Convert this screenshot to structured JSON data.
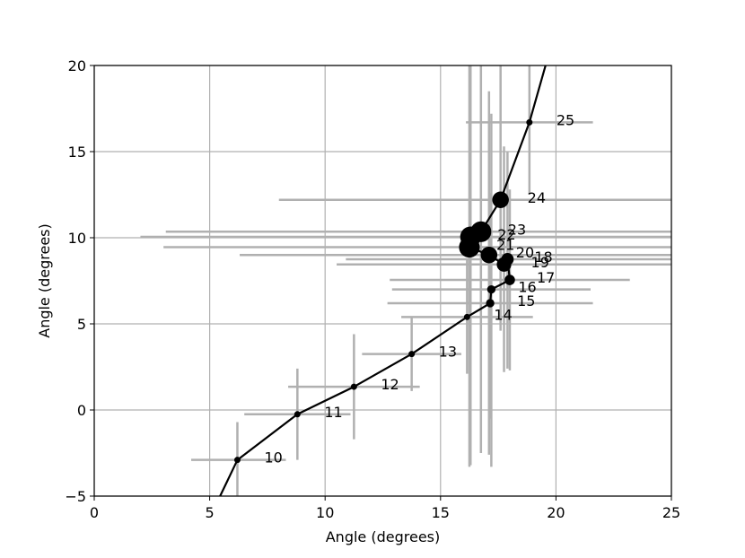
{
  "chart_data": {
    "type": "scatter",
    "title": "",
    "xlabel": "Angle (degrees)",
    "ylabel": "Angle (degrees)",
    "xlim": [
      0,
      25
    ],
    "ylim": [
      -5,
      20
    ],
    "xticks": [
      0,
      5,
      10,
      15,
      20,
      25
    ],
    "yticks": [
      -5,
      0,
      5,
      10,
      15,
      20
    ],
    "xtick_labels": [
      "0",
      "5",
      "10",
      "15",
      "20",
      "25"
    ],
    "ytick_labels": [
      "−5",
      "0",
      "5",
      "10",
      "15",
      "20"
    ],
    "grid": true,
    "line_color": "#000000",
    "errorbar_color": "#b0b0b0",
    "grid_color": "#b0b0b0",
    "line_extensions": {
      "start": {
        "x": 5.45,
        "y": -5.0
      },
      "end": {
        "x": 19.55,
        "y": 20.0
      }
    },
    "points": [
      {
        "label": "10",
        "x": 6.2,
        "y": -2.9,
        "xerr_low": 4.2,
        "xerr_high": 8.3,
        "yerr_low": -5.0,
        "yerr_high": -0.7,
        "marker_size": 2
      },
      {
        "label": "11",
        "x": 8.8,
        "y": -0.25,
        "xerr_low": 6.5,
        "xerr_high": 11.1,
        "yerr_low": -2.9,
        "yerr_high": 2.4,
        "marker_size": 2
      },
      {
        "label": "12",
        "x": 11.25,
        "y": 1.35,
        "xerr_low": 8.4,
        "xerr_high": 14.1,
        "yerr_low": -1.7,
        "yerr_high": 4.4,
        "marker_size": 2
      },
      {
        "label": "13",
        "x": 13.75,
        "y": 3.25,
        "xerr_low": 11.6,
        "xerr_high": 15.9,
        "yerr_low": 1.1,
        "yerr_high": 5.4,
        "marker_size": 2
      },
      {
        "label": "14",
        "x": 16.15,
        "y": 5.4,
        "xerr_low": 13.3,
        "xerr_high": 19.0,
        "yerr_low": 2.1,
        "yerr_high": 8.7,
        "marker_size": 2
      },
      {
        "label": "15",
        "x": 17.15,
        "y": 6.2,
        "xerr_low": 12.7,
        "xerr_high": 21.6,
        "yerr_low": -0.5,
        "yerr_high": 12.6,
        "marker_size": 3
      },
      {
        "label": "16",
        "x": 17.2,
        "y": 7.0,
        "xerr_low": 12.9,
        "xerr_high": 21.5,
        "yerr_low": -3.3,
        "yerr_high": 17.2,
        "marker_size": 3
      },
      {
        "label": "17",
        "x": 18.0,
        "y": 7.55,
        "xerr_low": 12.8,
        "xerr_high": 23.2,
        "yerr_low": 2.3,
        "yerr_high": 12.8,
        "marker_size": 4
      },
      {
        "label": "18",
        "x": 17.9,
        "y": 8.75,
        "xerr_low": 10.9,
        "xerr_high": 25.0,
        "yerr_low": 2.4,
        "yerr_high": 15.0,
        "marker_size": 5
      },
      {
        "label": "19",
        "x": 17.75,
        "y": 8.45,
        "xerr_low": 10.5,
        "xerr_high": 25.0,
        "yerr_low": 2.2,
        "yerr_high": 15.3,
        "marker_size": 6
      },
      {
        "label": "20",
        "x": 17.1,
        "y": 9.0,
        "xerr_low": 6.3,
        "xerr_high": 25.0,
        "yerr_low": -2.6,
        "yerr_high": 18.5,
        "marker_size": 7
      },
      {
        "label": "21",
        "x": 16.25,
        "y": 9.45,
        "xerr_low": 3.0,
        "xerr_high": 25.0,
        "yerr_low": -3.3,
        "yerr_high": 20.0,
        "marker_size": 9
      },
      {
        "label": "22",
        "x": 16.3,
        "y": 10.05,
        "xerr_low": 2.0,
        "xerr_high": 25.0,
        "yerr_low": -3.2,
        "yerr_high": 20.0,
        "marker_size": 9
      },
      {
        "label": "23",
        "x": 16.75,
        "y": 10.35,
        "xerr_low": 3.1,
        "xerr_high": 25.0,
        "yerr_low": -2.5,
        "yerr_high": 20.0,
        "marker_size": 9
      },
      {
        "label": "24",
        "x": 17.6,
        "y": 12.2,
        "xerr_low": 8.0,
        "xerr_high": 25.0,
        "yerr_low": 4.6,
        "yerr_high": 20.0,
        "marker_size": 7
      },
      {
        "label": "25",
        "x": 18.85,
        "y": 16.7,
        "xerr_low": 16.1,
        "xerr_high": 21.6,
        "yerr_low": 12.5,
        "yerr_high": 20.0,
        "marker_size": 2
      }
    ]
  }
}
